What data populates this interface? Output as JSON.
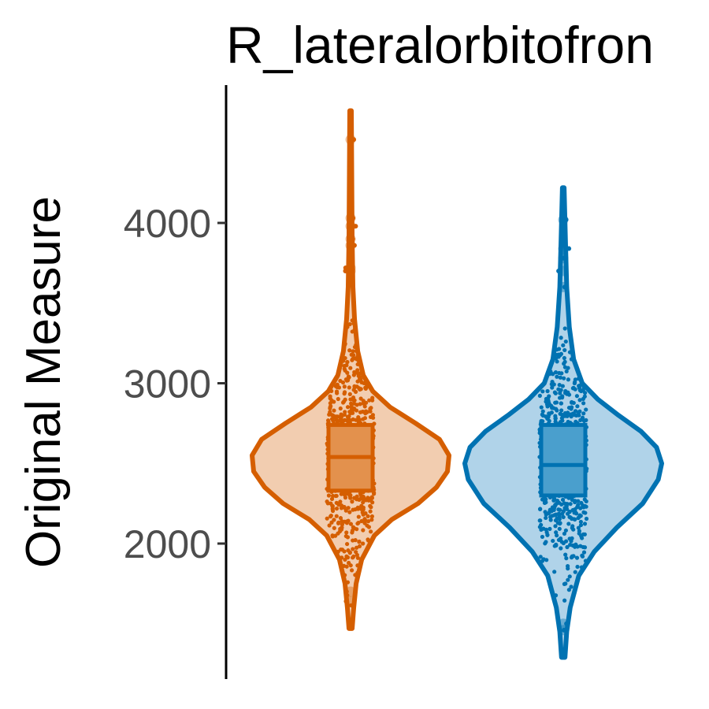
{
  "chart_data": {
    "type": "violin",
    "title": "R_lateralorbitofron",
    "xlabel": "",
    "ylabel": "Original Measure",
    "ylim": [
      1150,
      4800
    ],
    "yticks": [
      2000,
      3000,
      4000
    ],
    "ytick_labels": [
      "2000",
      "3000",
      "4000"
    ],
    "grid": false,
    "legend": "none",
    "series": [
      {
        "color": "#d55e00",
        "fill": "#f2cdb0",
        "box_fill": "#e3914d",
        "min": 1470,
        "max": 4700,
        "q1": 2330,
        "median": 2540,
        "q3": 2740,
        "density": [
          [
            1470,
            2
          ],
          [
            1600,
            4
          ],
          [
            1750,
            7
          ],
          [
            1900,
            14
          ],
          [
            2050,
            30
          ],
          [
            2150,
            52
          ],
          [
            2250,
            85
          ],
          [
            2350,
            108
          ],
          [
            2450,
            122
          ],
          [
            2550,
            124
          ],
          [
            2650,
            112
          ],
          [
            2750,
            82
          ],
          [
            2850,
            50
          ],
          [
            2950,
            28
          ],
          [
            3050,
            16
          ],
          [
            3200,
            9
          ],
          [
            3400,
            5
          ],
          [
            3600,
            3
          ],
          [
            3900,
            2
          ],
          [
            4300,
            1.5
          ],
          [
            4700,
            1
          ]
        ],
        "outliers": [
          4520,
          4030,
          3980,
          3900,
          3860,
          3720,
          3700,
          1640,
          1700
        ]
      },
      {
        "color": "#0072b2",
        "fill": "#b0d3e9",
        "box_fill": "#4a9fcd",
        "min": 1290,
        "max": 4220,
        "q1": 2300,
        "median": 2490,
        "q3": 2740,
        "density": [
          [
            1290,
            2
          ],
          [
            1450,
            4
          ],
          [
            1600,
            8
          ],
          [
            1800,
            18
          ],
          [
            1950,
            36
          ],
          [
            2100,
            62
          ],
          [
            2250,
            92
          ],
          [
            2400,
            110
          ],
          [
            2500,
            114
          ],
          [
            2600,
            108
          ],
          [
            2700,
            90
          ],
          [
            2800,
            64
          ],
          [
            2900,
            40
          ],
          [
            3000,
            22
          ],
          [
            3150,
            12
          ],
          [
            3350,
            7
          ],
          [
            3600,
            4
          ],
          [
            3900,
            2.5
          ],
          [
            4220,
            1
          ]
        ],
        "outliers": [
          4020,
          3840,
          3780,
          3700,
          3600,
          1500,
          1460
        ]
      }
    ]
  }
}
